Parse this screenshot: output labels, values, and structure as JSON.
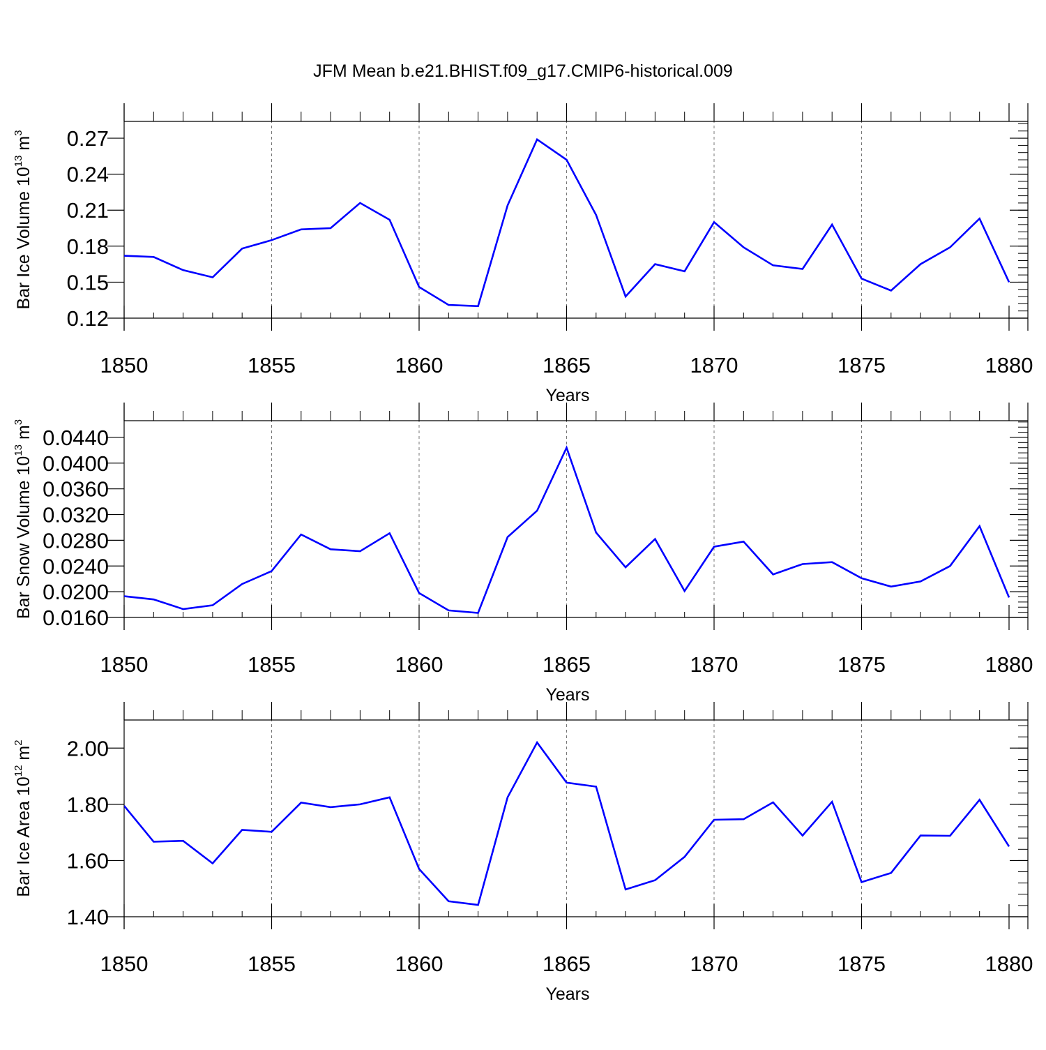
{
  "figure": {
    "title": "JFM Mean b.e21.BHIST.f09_g17.CMIP6-historical.009",
    "line_color": "#0000ff"
  },
  "chart_data": [
    {
      "type": "line",
      "title": "JFM Mean b.e21.BHIST.f09_g17.CMIP6-historical.009",
      "xlabel": "Years",
      "ylabel": {
        "base": "Bar Ice Volume 10",
        "exp": "13",
        "unit": " m",
        "unit_exp": "3"
      },
      "xlim": [
        1850,
        1880
      ],
      "ylim": [
        0.12,
        0.284
      ],
      "yticks": [
        0.12,
        0.15,
        0.18,
        0.21,
        0.24,
        0.27
      ],
      "ytick_labels": [
        "0.12",
        "0.15",
        "0.18",
        "0.21",
        "0.24",
        "0.27"
      ],
      "xticks": [
        1850,
        1855,
        1860,
        1865,
        1870,
        1875,
        1880
      ],
      "xtick_labels": [
        "1850",
        "1855",
        "1860",
        "1865",
        "1870",
        "1875",
        "1880"
      ],
      "grid": "vertical dashed at major x ticks",
      "series": [
        {
          "name": "Bar Ice Volume",
          "x": [
            1850,
            1851,
            1852,
            1853,
            1854,
            1855,
            1856,
            1857,
            1858,
            1859,
            1860,
            1861,
            1862,
            1863,
            1864,
            1865,
            1866,
            1867,
            1868,
            1869,
            1870,
            1871,
            1872,
            1873,
            1874,
            1875,
            1876,
            1877,
            1878,
            1879,
            1880
          ],
          "values": [
            0.172,
            0.171,
            0.16,
            0.154,
            0.178,
            0.185,
            0.194,
            0.195,
            0.216,
            0.202,
            0.146,
            0.131,
            0.13,
            0.214,
            0.269,
            0.252,
            0.206,
            0.138,
            0.165,
            0.159,
            0.2,
            0.179,
            0.164,
            0.161,
            0.198,
            0.153,
            0.143,
            0.165,
            0.179,
            0.203,
            0.15
          ]
        }
      ]
    },
    {
      "type": "line",
      "xlabel": "Years",
      "ylabel": {
        "base": "Bar Snow Volume 10",
        "exp": "13",
        "unit": " m",
        "unit_exp": "3"
      },
      "xlim": [
        1850,
        1880
      ],
      "ylim": [
        0.016,
        0.0466
      ],
      "yticks": [
        0.016,
        0.02,
        0.024,
        0.028,
        0.032,
        0.036,
        0.04,
        0.044
      ],
      "ytick_labels": [
        "0.0160",
        "0.0200",
        "0.0240",
        "0.0280",
        "0.0320",
        "0.0360",
        "0.0400",
        "0.0440"
      ],
      "xticks": [
        1850,
        1855,
        1860,
        1865,
        1870,
        1875,
        1880
      ],
      "xtick_labels": [
        "1850",
        "1855",
        "1860",
        "1865",
        "1870",
        "1875",
        "1880"
      ],
      "grid": "vertical dashed at major x ticks",
      "series": [
        {
          "name": "Bar Snow Volume",
          "x": [
            1850,
            1851,
            1852,
            1853,
            1854,
            1855,
            1856,
            1857,
            1858,
            1859,
            1860,
            1861,
            1862,
            1863,
            1864,
            1865,
            1866,
            1867,
            1868,
            1869,
            1870,
            1871,
            1872,
            1873,
            1874,
            1875,
            1876,
            1877,
            1878,
            1879,
            1880
          ],
          "values": [
            0.0193,
            0.0188,
            0.0173,
            0.0179,
            0.0212,
            0.0232,
            0.0289,
            0.0266,
            0.0263,
            0.0291,
            0.0198,
            0.0171,
            0.0167,
            0.0285,
            0.0326,
            0.0424,
            0.0292,
            0.0238,
            0.0282,
            0.0201,
            0.027,
            0.0278,
            0.0227,
            0.0243,
            0.0246,
            0.0221,
            0.0208,
            0.0216,
            0.024,
            0.0302,
            0.0191
          ]
        }
      ]
    },
    {
      "type": "line",
      "xlabel": "Years",
      "ylabel": {
        "base": "Bar Ice Area 10",
        "exp": "12",
        "unit": " m",
        "unit_exp": "2"
      },
      "xlim": [
        1850,
        1880
      ],
      "ylim": [
        1.4,
        2.1
      ],
      "yticks": [
        1.4,
        1.6,
        1.8,
        2.0
      ],
      "ytick_labels": [
        "1.40",
        "1.60",
        "1.80",
        "2.00"
      ],
      "xticks": [
        1850,
        1855,
        1860,
        1865,
        1870,
        1875,
        1880
      ],
      "xtick_labels": [
        "1850",
        "1855",
        "1860",
        "1865",
        "1870",
        "1875",
        "1880"
      ],
      "grid": "vertical dashed at major x ticks",
      "series": [
        {
          "name": "Bar Ice Area",
          "x": [
            1850,
            1851,
            1852,
            1853,
            1854,
            1855,
            1856,
            1857,
            1858,
            1859,
            1860,
            1861,
            1862,
            1863,
            1864,
            1865,
            1866,
            1867,
            1868,
            1869,
            1870,
            1871,
            1872,
            1873,
            1874,
            1875,
            1876,
            1877,
            1878,
            1879,
            1880
          ],
          "values": [
            1.795,
            1.667,
            1.67,
            1.59,
            1.709,
            1.702,
            1.806,
            1.79,
            1.8,
            1.825,
            1.57,
            1.455,
            1.442,
            1.825,
            2.02,
            1.877,
            1.863,
            1.497,
            1.53,
            1.613,
            1.745,
            1.747,
            1.807,
            1.689,
            1.809,
            1.523,
            1.556,
            1.689,
            1.688,
            1.816,
            1.65
          ]
        }
      ]
    }
  ]
}
